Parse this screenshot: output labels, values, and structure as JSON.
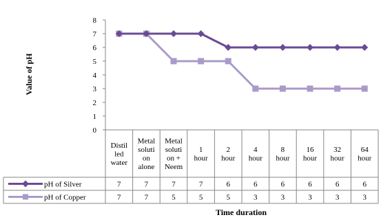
{
  "chart_data": {
    "type": "line",
    "categories": [
      [
        "Distil",
        "led",
        "water"
      ],
      [
        "Metal",
        "soluti",
        "on",
        "alone"
      ],
      [
        "Metal",
        "soluti",
        "on +",
        "Neem"
      ],
      [
        "1",
        "hour"
      ],
      [
        "2",
        "hour"
      ],
      [
        "4",
        "hour"
      ],
      [
        "8",
        "hour"
      ],
      [
        "16",
        "hour"
      ],
      [
        "32",
        "hour"
      ],
      [
        "64",
        "hour"
      ]
    ],
    "ylabel": "Value of pH",
    "xlabel": "Time duration",
    "ylim": [
      0,
      8
    ],
    "yticks": [
      "0",
      "1",
      "2",
      "3",
      "4",
      "5",
      "6",
      "7",
      "8"
    ],
    "grid": false,
    "legend": "bottom-table",
    "series": [
      {
        "name": "pH of Silver",
        "values": [
          7,
          7,
          7,
          7,
          6,
          6,
          6,
          6,
          6,
          6
        ],
        "color": "#6a4a94",
        "marker": "diamond"
      },
      {
        "name": "pH of Copper",
        "values": [
          7,
          7,
          5,
          5,
          5,
          3,
          3,
          3,
          3,
          3
        ],
        "color": "#a99bc9",
        "marker": "square"
      }
    ]
  }
}
